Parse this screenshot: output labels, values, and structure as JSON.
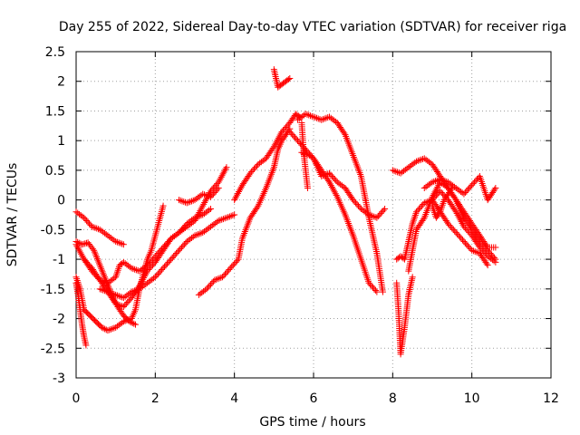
{
  "chart_data": {
    "type": "scatter",
    "title": "Day 255 of 2022, Sidereal Day-to-day VTEC variation (SDTVAR) for receiver riga",
    "xlabel": "GPS time / hours",
    "ylabel": "SDTVAR / TECUs",
    "xlim": [
      0,
      12
    ],
    "ylim": [
      -3,
      2.5
    ],
    "xticks": [
      "0",
      "2",
      "4",
      "6",
      "8",
      "10",
      "12"
    ],
    "yticks": [
      "2.5",
      "2",
      "1.5",
      "1",
      "0.5",
      "0",
      "-0.5",
      "-1",
      "-1.5",
      "-2",
      "-2.5",
      "-3"
    ],
    "xtick_values": [
      0,
      2,
      4,
      6,
      8,
      10,
      12
    ],
    "ytick_values": [
      2.5,
      2,
      1.5,
      1,
      0.5,
      0,
      -0.5,
      -1,
      -1.5,
      -2,
      -2.5,
      -3
    ],
    "grid": true,
    "marker": "+",
    "color": "#ff0000",
    "series": [
      {
        "name": "s1",
        "x": [
          0.0,
          0.2,
          0.4,
          0.6,
          0.8,
          1.0,
          1.2
        ],
        "y": [
          -0.2,
          -0.3,
          -0.45,
          -0.5,
          -0.6,
          -0.7,
          -0.75
        ]
      },
      {
        "name": "s2",
        "x": [
          0.0,
          0.15,
          0.3,
          0.45,
          0.6,
          0.75,
          0.9,
          1.05,
          1.2,
          1.35,
          1.5
        ],
        "y": [
          -0.7,
          -0.75,
          -0.72,
          -0.85,
          -1.1,
          -1.35,
          -1.6,
          -1.8,
          -1.95,
          -2.05,
          -2.1
        ]
      },
      {
        "name": "s3",
        "x": [
          0.0,
          0.1,
          0.2,
          0.35,
          0.5,
          0.65,
          0.8,
          1.0,
          1.2,
          1.4,
          1.5,
          1.6,
          1.7,
          1.8,
          1.9,
          2.0,
          2.1,
          2.2
        ],
        "y": [
          -1.3,
          -1.5,
          -1.85,
          -1.95,
          -2.05,
          -2.15,
          -2.2,
          -2.15,
          -2.05,
          -2.0,
          -1.85,
          -1.5,
          -1.25,
          -1.0,
          -0.85,
          -0.6,
          -0.35,
          -0.1
        ]
      },
      {
        "name": "s4",
        "x": [
          0.0,
          0.05,
          0.1,
          0.15,
          0.2,
          0.25
        ],
        "y": [
          -1.4,
          -1.6,
          -1.85,
          -2.1,
          -2.3,
          -2.45
        ]
      },
      {
        "name": "s5",
        "x": [
          0.0,
          0.2,
          0.4,
          0.6,
          0.8,
          1.0,
          1.1,
          1.2,
          1.4,
          1.6,
          1.8,
          2.0,
          2.2,
          2.4,
          2.6,
          2.8,
          3.0,
          3.2,
          3.4
        ],
        "y": [
          -0.75,
          -1.0,
          -1.2,
          -1.35,
          -1.4,
          -1.3,
          -1.1,
          -1.05,
          -1.15,
          -1.2,
          -1.1,
          -0.95,
          -0.8,
          -0.65,
          -0.55,
          -0.4,
          -0.3,
          -0.25,
          -0.15
        ]
      },
      {
        "name": "s6",
        "x": [
          0.2,
          0.4,
          0.6,
          0.8,
          1.0,
          1.2,
          1.4,
          1.6,
          1.8,
          2.0,
          2.2,
          2.4,
          2.6,
          2.8,
          3.0,
          3.2,
          3.4,
          3.6,
          3.8
        ],
        "y": [
          -1.0,
          -1.15,
          -1.35,
          -1.55,
          -1.75,
          -1.8,
          -1.65,
          -1.45,
          -1.2,
          -1.05,
          -0.85,
          -0.65,
          -0.55,
          -0.45,
          -0.35,
          -0.1,
          0.15,
          0.3,
          0.55
        ]
      },
      {
        "name": "s7",
        "x": [
          0.6,
          0.8,
          1.0,
          1.2,
          1.4,
          1.6,
          1.8,
          2.0,
          2.2,
          2.4,
          2.6,
          2.8,
          3.0,
          3.2,
          3.4,
          3.6,
          3.8,
          4.0
        ],
        "y": [
          -1.5,
          -1.55,
          -1.6,
          -1.65,
          -1.55,
          -1.5,
          -1.4,
          -1.3,
          -1.15,
          -1.0,
          -0.85,
          -0.7,
          -0.6,
          -0.55,
          -0.45,
          -0.35,
          -0.3,
          -0.25
        ]
      },
      {
        "name": "s8",
        "x": [
          2.6,
          2.8,
          3.0,
          3.2,
          3.4,
          3.6
        ],
        "y": [
          0.0,
          -0.05,
          0.0,
          0.1,
          0.05,
          0.2
        ]
      },
      {
        "name": "s9",
        "x": [
          3.1,
          3.3,
          3.5,
          3.7,
          3.9,
          4.1,
          4.2,
          4.4,
          4.6,
          4.8,
          5.0,
          5.1,
          5.2,
          5.3,
          5.4
        ],
        "y": [
          -1.6,
          -1.5,
          -1.35,
          -1.3,
          -1.15,
          -1.0,
          -0.65,
          -0.3,
          -0.1,
          0.2,
          0.55,
          0.85,
          1.0,
          1.1,
          1.2
        ]
      },
      {
        "name": "s10",
        "x": [
          4.0,
          4.2,
          4.4,
          4.6,
          4.8,
          5.0,
          5.2,
          5.4,
          5.55,
          5.65
        ],
        "y": [
          0.0,
          0.25,
          0.45,
          0.6,
          0.7,
          0.9,
          1.15,
          1.3,
          1.45,
          1.4
        ]
      },
      {
        "name": "s11",
        "x": [
          5.0,
          5.05,
          5.1,
          5.2,
          5.3,
          5.4
        ],
        "y": [
          2.2,
          2.05,
          1.9,
          1.95,
          2.0,
          2.05
        ]
      },
      {
        "name": "s12",
        "x": [
          5.6,
          5.8,
          6.0,
          6.2,
          6.4,
          6.6,
          6.8,
          7.0,
          7.2,
          7.4,
          7.6,
          7.75
        ],
        "y": [
          1.35,
          1.45,
          1.4,
          1.35,
          1.4,
          1.3,
          1.1,
          0.75,
          0.4,
          -0.3,
          -0.9,
          -1.55
        ]
      },
      {
        "name": "s13",
        "x": [
          5.4,
          5.6,
          5.8,
          6.0,
          6.2,
          6.4,
          6.6,
          6.8,
          7.0,
          7.2,
          7.4,
          7.6
        ],
        "y": [
          1.15,
          1.0,
          0.85,
          0.7,
          0.5,
          0.3,
          0.05,
          -0.25,
          -0.6,
          -1.0,
          -1.4,
          -1.55
        ]
      },
      {
        "name": "s14",
        "x": [
          5.7,
          5.9,
          6.0,
          6.1,
          6.2,
          6.4,
          6.6,
          6.8,
          7.0,
          7.2,
          7.4,
          7.6,
          7.8
        ],
        "y": [
          0.8,
          0.75,
          0.7,
          0.55,
          0.4,
          0.45,
          0.3,
          0.2,
          0.0,
          -0.15,
          -0.25,
          -0.3,
          -0.15
        ]
      },
      {
        "name": "s15",
        "x": [
          5.7,
          5.75,
          5.8,
          5.85
        ],
        "y": [
          1.3,
          0.8,
          0.5,
          0.2
        ]
      },
      {
        "name": "s16",
        "x": [
          8.0,
          8.2,
          8.4,
          8.6,
          8.8,
          9.0,
          9.2,
          9.4,
          9.6,
          9.8,
          10.0,
          10.2,
          10.4,
          10.6
        ],
        "y": [
          0.5,
          0.45,
          0.55,
          0.65,
          0.7,
          0.6,
          0.4,
          0.2,
          0.0,
          -0.3,
          -0.5,
          -0.7,
          -0.85,
          -1.0
        ]
      },
      {
        "name": "s17",
        "x": [
          8.1,
          8.2,
          8.3,
          8.4,
          8.5,
          8.6,
          8.8,
          9.0,
          9.2,
          9.4,
          9.6,
          9.8,
          10.0,
          10.2,
          10.4
        ],
        "y": [
          -1.0,
          -0.95,
          -1.0,
          -0.7,
          -0.4,
          -0.2,
          -0.05,
          0.0,
          -0.2,
          -0.4,
          -0.55,
          -0.7,
          -0.85,
          -0.9,
          -1.1
        ]
      },
      {
        "name": "s18",
        "x": [
          8.1,
          8.15,
          8.2,
          8.3,
          8.4,
          8.5
        ],
        "y": [
          -1.4,
          -1.9,
          -2.6,
          -2.15,
          -1.6,
          -1.3
        ]
      },
      {
        "name": "s19",
        "x": [
          8.4,
          8.6,
          8.8,
          9.0,
          9.2,
          9.4,
          9.6,
          9.8,
          10.0,
          10.2,
          10.4,
          10.6
        ],
        "y": [
          -1.2,
          -0.5,
          -0.3,
          0.05,
          0.3,
          0.2,
          0.0,
          -0.2,
          -0.4,
          -0.6,
          -0.8,
          -0.8
        ]
      },
      {
        "name": "s20",
        "x": [
          8.8,
          9.0,
          9.2,
          9.4,
          9.6,
          9.8,
          10.0,
          10.2,
          10.4,
          10.6
        ],
        "y": [
          0.2,
          0.3,
          0.35,
          0.3,
          0.2,
          0.1,
          0.25,
          0.4,
          0.0,
          0.2
        ]
      },
      {
        "name": "s21",
        "x": [
          9.0,
          9.2,
          9.4,
          9.6,
          9.8,
          10.0,
          10.2,
          10.4,
          10.6
        ],
        "y": [
          0.0,
          0.15,
          0.0,
          -0.2,
          -0.45,
          -0.6,
          -0.8,
          -0.95,
          -1.05
        ]
      },
      {
        "name": "s22",
        "x": [
          9.0,
          9.1,
          9.2,
          9.3,
          9.4,
          9.5
        ],
        "y": [
          -0.1,
          -0.3,
          -0.2,
          0.0,
          0.1,
          0.2
        ]
      }
    ]
  }
}
